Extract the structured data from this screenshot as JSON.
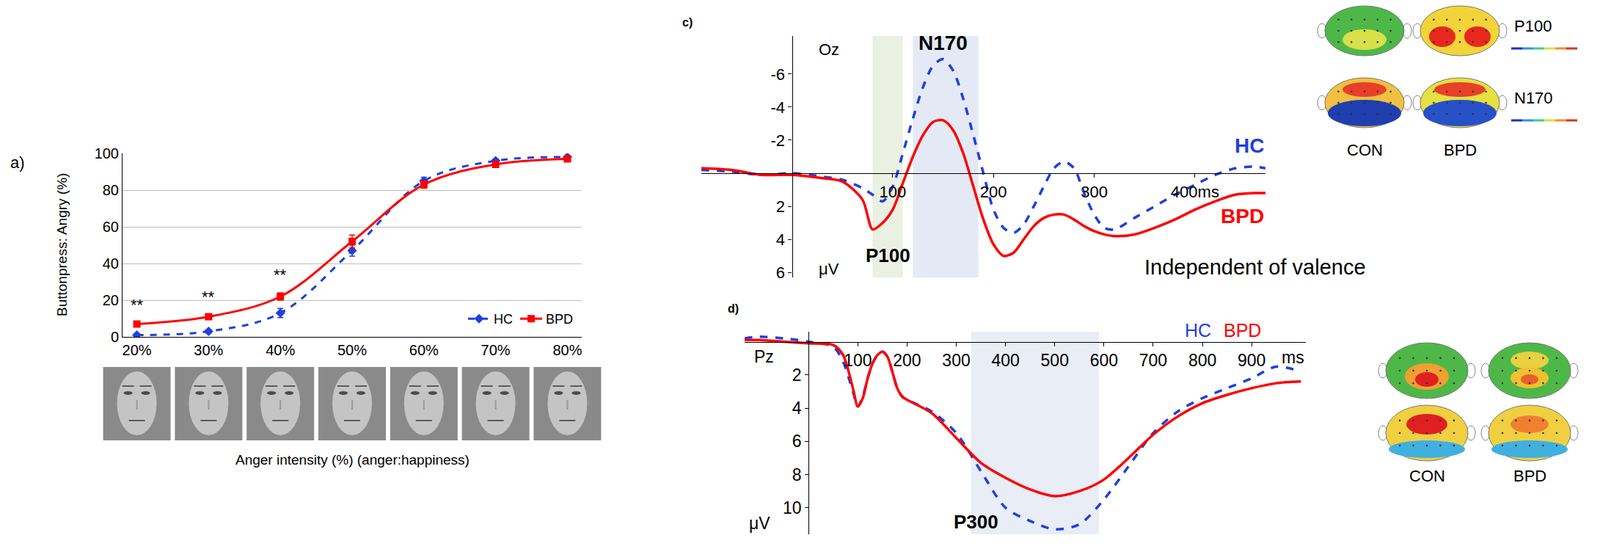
{
  "chart_data": [
    {
      "type": "line",
      "panel_label": "a)",
      "ylabel": "Buttonpress: Angry (%)",
      "xlabel": "Anger intensity (%) (anger:happiness)",
      "categories": [
        "20%",
        "30%",
        "40%",
        "50%",
        "60%",
        "70%",
        "80%"
      ],
      "series": [
        {
          "name": "HC",
          "color": "#1f3fe0",
          "line_style": "dashed",
          "marker": "diamond",
          "values": [
            1,
            3,
            13,
            47,
            85,
            96,
            98
          ],
          "errors": [
            0.5,
            1,
            2.5,
            3,
            2,
            1,
            0.5
          ]
        },
        {
          "name": "BPD",
          "color": "#ff0000",
          "line_style": "solid",
          "marker": "square",
          "values": [
            7,
            11,
            22,
            52,
            83,
            94,
            97
          ],
          "errors": [
            0.8,
            1,
            2,
            3.5,
            2,
            1,
            0.5
          ]
        }
      ],
      "ylim": [
        0,
        100
      ],
      "yticks": [
        0,
        20,
        40,
        60,
        80,
        100
      ],
      "grid": true,
      "legend": "bottom-right",
      "annotations": [
        {
          "category": "20%",
          "text": "**"
        },
        {
          "category": "30%",
          "text": "**"
        },
        {
          "category": "40%",
          "text": "**"
        }
      ]
    },
    {
      "type": "line",
      "panel_label": "c)",
      "x": [
        -90,
        -60,
        -30,
        0,
        30,
        50,
        70,
        80,
        90,
        100,
        110,
        120,
        130,
        140,
        150,
        160,
        170,
        180,
        190,
        200,
        210,
        220,
        230,
        240,
        250,
        260,
        270,
        280,
        290,
        300,
        310,
        320,
        340,
        360,
        380,
        400,
        420,
        440,
        460,
        470
      ],
      "series": [
        {
          "name": "HC",
          "color": "#1f3fe0",
          "line_style": "dashed",
          "values": [
            -0.2,
            -0.1,
            0.1,
            0,
            0.2,
            0.4,
            0.9,
            1.3,
            1.7,
            0.8,
            -1.2,
            -3.3,
            -5.2,
            -6.5,
            -6.9,
            -6.2,
            -4.5,
            -2.3,
            0,
            2.2,
            3.3,
            3.6,
            3.1,
            2.0,
            0.8,
            -0.3,
            -0.7,
            -0.3,
            1.2,
            2.5,
            3.3,
            3.4,
            2.7,
            2.0,
            1.3,
            0.7,
            0.1,
            -0.3,
            -0.4,
            -0.3
          ]
        },
        {
          "name": "BPD",
          "color": "#ff0000",
          "line_style": "solid",
          "values": [
            -0.3,
            -0.2,
            0.1,
            0.1,
            0.3,
            0.5,
            1.6,
            3.4,
            3.0,
            2.2,
            0.6,
            -1.0,
            -2.3,
            -3.1,
            -3.2,
            -2.6,
            -1.2,
            0.8,
            2.8,
            4.3,
            5.0,
            4.8,
            4.0,
            3.2,
            2.7,
            2.5,
            2.5,
            2.8,
            3.2,
            3.5,
            3.7,
            3.8,
            3.7,
            3.3,
            2.8,
            2.2,
            1.7,
            1.3,
            1.2,
            1.2
          ]
        }
      ],
      "xlim": [
        -90,
        470
      ],
      "xticks": [
        100,
        200,
        300,
        {
          "value": 400,
          "label": "400ms"
        }
      ],
      "ylim": [
        6.3,
        -8.3
      ],
      "yticks": [
        -6,
        -4,
        -2,
        2,
        4,
        6
      ],
      "highlight_windows": [
        {
          "start": 80,
          "end": 110,
          "color": "#eaf0e2"
        },
        {
          "start": 120,
          "end": 185,
          "color": "#e4eaf5"
        }
      ],
      "annotations": [
        "Oz",
        "μV",
        "N170",
        "P100",
        "Independent of valence"
      ],
      "topomaps": {
        "components": [
          "P100",
          "N170"
        ],
        "groups": [
          "CON",
          "BPD"
        ]
      }
    },
    {
      "type": "line",
      "panel_label": "d)",
      "x": [
        -130,
        -100,
        -50,
        0,
        50,
        70,
        90,
        100,
        110,
        120,
        130,
        140,
        150,
        160,
        170,
        180,
        190,
        200,
        250,
        300,
        350,
        400,
        450,
        500,
        550,
        600,
        650,
        700,
        750,
        800,
        850,
        900,
        950,
        1000
      ],
      "series": [
        {
          "name": "HC",
          "color": "#1f3fe0",
          "line_style": "dashed",
          "values": [
            -0.2,
            -0.3,
            -0.2,
            0,
            0.3,
            1.2,
            3,
            3.9,
            3.3,
            2.2,
            1.3,
            0.8,
            0.6,
            0.9,
            1.8,
            2.8,
            3.3,
            3.5,
            4.2,
            5.5,
            7.8,
            10.0,
            10.8,
            11.3,
            11.0,
            9.5,
            7.5,
            5.5,
            4.2,
            3.4,
            2.8,
            2.2,
            1.5,
            1.8
          ]
        },
        {
          "name": "BPD",
          "color": "#ff0000",
          "line_style": "solid",
          "values": [
            -0.1,
            -0.1,
            0,
            0.1,
            0.2,
            0.8,
            2.8,
            3.9,
            3.4,
            2.2,
            1.3,
            0.8,
            0.6,
            0.9,
            1.8,
            2.8,
            3.3,
            3.5,
            4.3,
            5.8,
            7.3,
            8.2,
            8.9,
            9.3,
            9.0,
            8.3,
            7.0,
            5.6,
            4.5,
            3.7,
            3.2,
            2.8,
            2.5,
            2.4
          ]
        }
      ],
      "xlim": [
        -130,
        1010
      ],
      "xticks": [
        100,
        200,
        300,
        400,
        500,
        600,
        700,
        800,
        900
      ],
      "ylim": [
        11.6,
        -0.6
      ],
      "yticks": [
        2,
        4,
        6,
        8,
        10
      ],
      "highlight_windows": [
        {
          "start": 330,
          "end": 590,
          "color": "#e8edf6"
        }
      ],
      "annotations": [
        "Pz",
        "μV",
        "ms",
        "P300"
      ],
      "topomaps": {
        "groups": [
          "CON",
          "BPD"
        ]
      }
    }
  ]
}
